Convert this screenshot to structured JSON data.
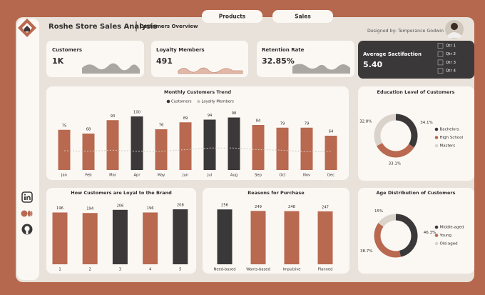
{
  "header": {
    "title": "Roshe Store Sales Analysis",
    "subtitle": "Customers Overview",
    "credit": "Designed by: Temperance Godwin"
  },
  "nav": {
    "tabs": [
      "Products",
      "Sales"
    ]
  },
  "kpis": [
    {
      "label": "Customers",
      "value": "1K"
    },
    {
      "label": "Loyalty Members",
      "value": "491"
    },
    {
      "label": "Retention Rate",
      "value": "32.85%"
    }
  ],
  "filter": {
    "title": "Average Sactifaction",
    "value": "5.40",
    "options": [
      "Qtr 1",
      "Qtr 2",
      "Qtr 3",
      "Qtr 4"
    ]
  },
  "chart_data": [
    {
      "type": "bar",
      "title": "Monthly Customers Trend",
      "legend": "top",
      "categories": [
        "Jan",
        "Feb",
        "Mar",
        "Apr",
        "May",
        "Jun",
        "Jul",
        "Aug",
        "Sep",
        "Oct",
        "Nov",
        "Dec"
      ],
      "series": [
        {
          "name": "Customers",
          "color": "#3a3838",
          "colors": [
            "#b8694f",
            "#b8694f",
            "#b8694f",
            "#3a3838",
            "#b8694f",
            "#b8694f",
            "#3a3838",
            "#3a3838",
            "#b8694f",
            "#b8694f",
            "#b8694f",
            "#b8694f"
          ],
          "values": [
            75,
            68,
            93,
            100,
            76,
            89,
            94,
            98,
            84,
            79,
            79,
            64
          ]
        },
        {
          "name": "Loyalty Members",
          "type": "line",
          "color": "#cfc6bc",
          "values": [
            36,
            35,
            37,
            35,
            35,
            38,
            41,
            41,
            38,
            37,
            34,
            35
          ]
        }
      ]
    },
    {
      "type": "bar",
      "title": "How Customers are Loyal to the Brand",
      "categories": [
        "1",
        "2",
        "3",
        "4",
        "5"
      ],
      "values": [
        196,
        194,
        206,
        196,
        208
      ],
      "colors": [
        "#b8694f",
        "#b8694f",
        "#3a3838",
        "#b8694f",
        "#3a3838"
      ]
    },
    {
      "type": "bar",
      "title": "Reasons for Purchase",
      "categories": [
        "Need-based",
        "Wants-based",
        "Impulsive",
        "Planned"
      ],
      "values": [
        256,
        249,
        248,
        247
      ],
      "colors": [
        "#3a3838",
        "#b8694f",
        "#b8694f",
        "#b8694f"
      ]
    },
    {
      "type": "pie",
      "donut": true,
      "title": "Education Level of Customers",
      "legend": "right",
      "categories": [
        "Bachelors",
        "High School",
        "Masters"
      ],
      "values": [
        34.1,
        33.1,
        32.8
      ],
      "value_labels": [
        "34.1%",
        "33.1%",
        "32.8%"
      ],
      "colors": [
        "#3a3838",
        "#b8694f",
        "#d9d3cc"
      ]
    },
    {
      "type": "pie",
      "donut": true,
      "title": "Age Distribution of Customers",
      "legend": "right",
      "categories": [
        "Middle-aged",
        "Young",
        "Old-aged"
      ],
      "values": [
        46.3,
        38.7,
        15
      ],
      "value_labels": [
        "46.3%",
        "38.7%",
        "15%"
      ],
      "colors": [
        "#3a3838",
        "#b8694f",
        "#d9d3cc"
      ]
    }
  ]
}
